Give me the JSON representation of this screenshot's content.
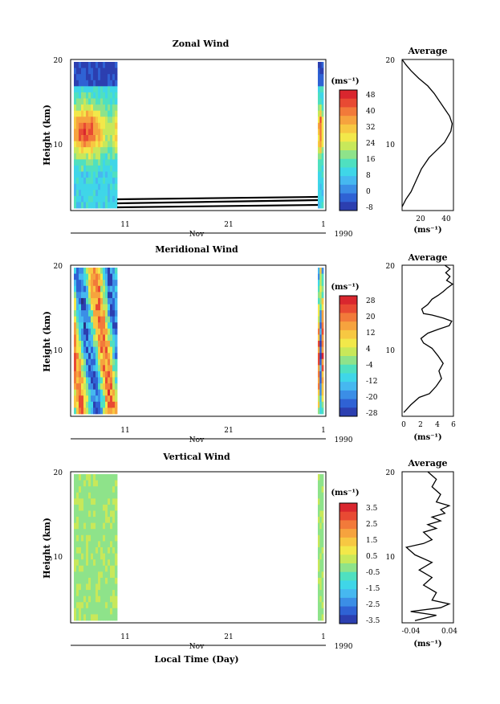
{
  "colors": {
    "jet": [
      "#2a2f80",
      "#2c3fb0",
      "#2f62d4",
      "#3b8ee6",
      "#46b8f0",
      "#3fd6e8",
      "#4fe0c0",
      "#8ee38a",
      "#c8e85a",
      "#f2e84a",
      "#f7c842",
      "#f6a33e",
      "#f27a3a",
      "#e84a33",
      "#d9262e"
    ],
    "contour": "#000000",
    "frame": "#000000"
  },
  "chart_data": [
    {
      "type": "heatmap",
      "title": "Zonal Wind",
      "ylabel": "Height (km)",
      "yticks": [
        "20",
        "10"
      ],
      "ylim": [
        0,
        20
      ],
      "xticks": [
        "11",
        "21",
        "1"
      ],
      "month_label": "Nov",
      "year_label": "1990",
      "colorbar_unit": "(ms⁻¹)",
      "colorbar_ticks": [
        "48",
        "40",
        "32",
        "24",
        "16",
        "8",
        "0",
        "-8"
      ],
      "colorbar_range": [
        -8,
        48
      ],
      "segments": [
        {
          "day_start": 2,
          "day_end": 8,
          "description_values": [
            [
              10,
              25,
              15
            ],
            [
              14,
              45,
              10
            ],
            [
              5,
              20,
              3
            ]
          ]
        },
        {
          "day_start": 30.6,
          "day_end": 31,
          "description_values": [
            [
              8,
              35,
              10
            ]
          ]
        }
      ]
    },
    {
      "type": "line",
      "title": "Average",
      "xlabel": "(ms⁻¹)",
      "xticks": [
        "20",
        "40"
      ],
      "xlim": [
        5,
        45
      ],
      "yticks": [
        "20",
        "10"
      ],
      "ylim": [
        0,
        20
      ],
      "points": [
        [
          5,
          0.5
        ],
        [
          8,
          1.5
        ],
        [
          12,
          2.5
        ],
        [
          16,
          4
        ],
        [
          20,
          5.5
        ],
        [
          26,
          7
        ],
        [
          32,
          8
        ],
        [
          38,
          9
        ],
        [
          43,
          10.5
        ],
        [
          44,
          11.5
        ],
        [
          42,
          12.5
        ],
        [
          38,
          13.5
        ],
        [
          34,
          14.5
        ],
        [
          30,
          15.5
        ],
        [
          25,
          16.5
        ],
        [
          18,
          17.5
        ],
        [
          12,
          18.5
        ],
        [
          8,
          19.3
        ],
        [
          5,
          20
        ]
      ]
    },
    {
      "type": "heatmap",
      "title": "Meridional Wind",
      "ylabel": "Height (km)",
      "yticks": [
        "20",
        "10"
      ],
      "ylim": [
        0,
        20
      ],
      "xticks": [
        "11",
        "21",
        "1"
      ],
      "month_label": "Nov",
      "year_label": "1990",
      "colorbar_unit": "(ms⁻¹)",
      "colorbar_ticks": [
        "28",
        "20",
        "12",
        "4",
        "-4",
        "-12",
        "-20",
        "-28"
      ],
      "colorbar_range": [
        -28,
        28
      ]
    },
    {
      "type": "line",
      "title": "Average",
      "xlabel": "(ms⁻¹)",
      "xticks": [
        "0",
        "2",
        "4",
        "6"
      ],
      "xlim": [
        0,
        6
      ],
      "yticks": [
        "20",
        "10"
      ],
      "ylim": [
        0,
        20
      ],
      "points": [
        [
          0.2,
          0.5
        ],
        [
          1,
          1.5
        ],
        [
          2,
          2.5
        ],
        [
          3.2,
          3
        ],
        [
          4,
          4
        ],
        [
          4.6,
          5
        ],
        [
          4.3,
          6
        ],
        [
          4.8,
          7
        ],
        [
          4.2,
          8
        ],
        [
          3.5,
          9
        ],
        [
          2.5,
          9.7
        ],
        [
          2.2,
          10.3
        ],
        [
          3,
          11
        ],
        [
          4.2,
          11.5
        ],
        [
          5.5,
          12
        ],
        [
          5.8,
          12.6
        ],
        [
          4.8,
          13
        ],
        [
          3.5,
          13.4
        ],
        [
          2.5,
          13.6
        ],
        [
          2.3,
          14.2
        ],
        [
          3,
          14.8
        ],
        [
          3.5,
          15.5
        ],
        [
          4.2,
          16
        ],
        [
          4.8,
          16.5
        ],
        [
          5.3,
          17
        ],
        [
          5.9,
          17.5
        ],
        [
          5.2,
          18
        ],
        [
          5.6,
          18.5
        ],
        [
          5.1,
          19
        ],
        [
          5.6,
          19.5
        ],
        [
          5,
          20
        ]
      ]
    },
    {
      "type": "heatmap",
      "title": "Vertical Wind",
      "ylabel": "Height (km)",
      "yticks": [
        "20",
        "10"
      ],
      "ylim": [
        0,
        20
      ],
      "xticks": [
        "11",
        "21",
        "1"
      ],
      "month_label": "Nov",
      "year_label": "1990",
      "xlabel": "Local Time (Day)",
      "colorbar_unit": "(ms⁻¹)",
      "colorbar_ticks": [
        "3.5",
        "2.5",
        "1.5",
        "0.5",
        "-0.5",
        "-1.5",
        "-2.5",
        "-3.5"
      ],
      "colorbar_range": [
        -4,
        4
      ]
    },
    {
      "type": "line",
      "title": "Average",
      "xlabel": "(ms⁻¹)",
      "xticks": [
        "-0.04",
        "0.04"
      ],
      "xlim": [
        -0.06,
        0.06
      ],
      "yticks": [
        "20",
        "10"
      ],
      "ylim": [
        0,
        20
      ],
      "points": [
        [
          -0.03,
          0.3
        ],
        [
          0.02,
          1
        ],
        [
          -0.04,
          1.5
        ],
        [
          0.03,
          2
        ],
        [
          0.05,
          2.5
        ],
        [
          0.01,
          3
        ],
        [
          0.02,
          4
        ],
        [
          -0.01,
          5
        ],
        [
          0.01,
          6
        ],
        [
          -0.02,
          7
        ],
        [
          0.01,
          8
        ],
        [
          -0.03,
          9
        ],
        [
          -0.05,
          10
        ],
        [
          -0.01,
          10.5
        ],
        [
          0.01,
          11
        ],
        [
          -0.01,
          12
        ],
        [
          0.02,
          12.5
        ],
        [
          0.0,
          13
        ],
        [
          0.03,
          13.5
        ],
        [
          0.01,
          14
        ],
        [
          0.04,
          14.5
        ],
        [
          0.03,
          15
        ],
        [
          0.05,
          15.5
        ],
        [
          0.02,
          16
        ],
        [
          0.03,
          17
        ],
        [
          0.01,
          18
        ],
        [
          0.02,
          19
        ],
        [
          0.0,
          20
        ]
      ]
    }
  ]
}
